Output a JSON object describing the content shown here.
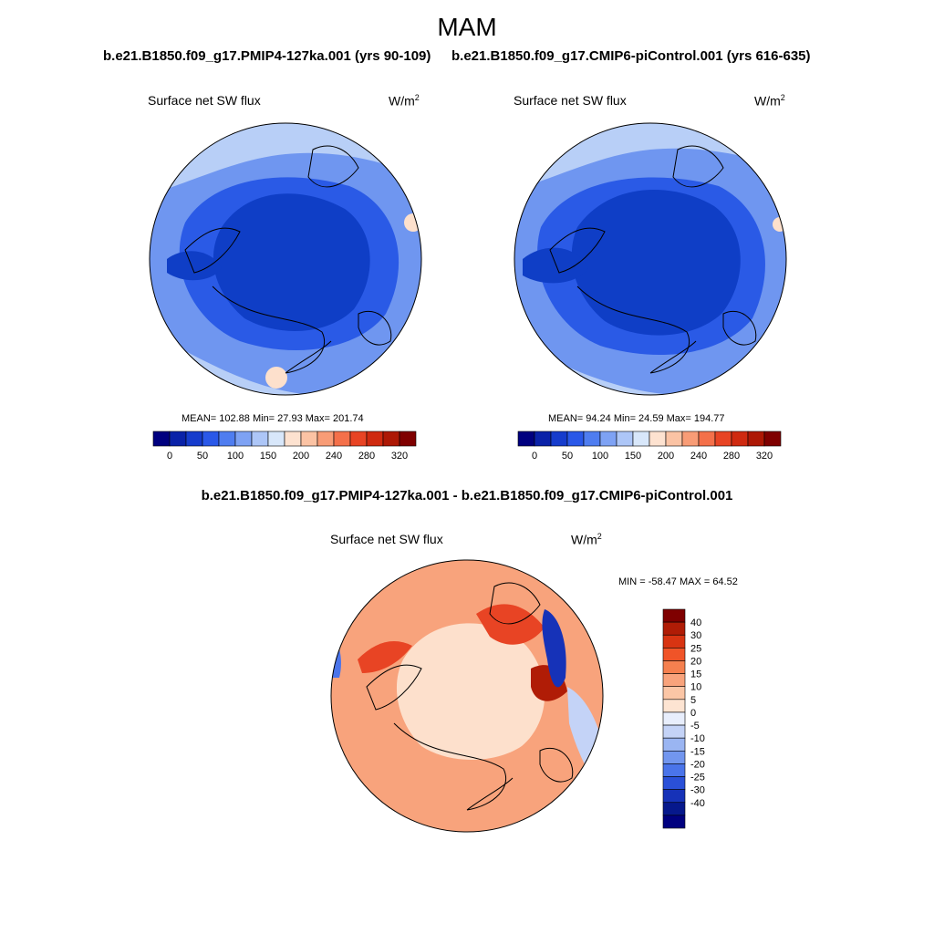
{
  "figure": {
    "season": "MAM",
    "panel_left": {
      "title": "b.e21.B1850.f09_g17.PMIP4-127ka.001 (yrs 90-109)",
      "variable": "Surface net SW flux",
      "units": "W/m",
      "units_sup": "2",
      "stats": "MEAN= 102.88  Min=  27.93  Max= 201.74"
    },
    "panel_right": {
      "title": "b.e21.B1850.f09_g17.CMIP6-piControl.001 (yrs 616-635)",
      "variable": "Surface net SW flux",
      "units": "W/m",
      "units_sup": "2",
      "stats": "MEAN=  94.24  Min=  24.59  Max= 194.77"
    },
    "panel_diff": {
      "title": "b.e21.B1850.f09_g17.PMIP4-127ka.001 - b.e21.B1850.f09_g17.CMIP6-piControl.001",
      "variable": "Surface net SW flux",
      "units": "W/m",
      "units_sup": "2",
      "stats": "MIN = -58.47 MAX =  64.52"
    }
  },
  "colorbar_abs": {
    "colors": [
      "#00007f",
      "#0a22a8",
      "#163ccc",
      "#2a58e8",
      "#4f7df0",
      "#7ea2f4",
      "#adc6f7",
      "#d8e7fa",
      "#fde2d0",
      "#fbc3a4",
      "#f89c76",
      "#f4704a",
      "#e84424",
      "#cf2a10",
      "#ad1805",
      "#7f0000"
    ],
    "tick_labels": [
      "0",
      "50",
      "100",
      "150",
      "200",
      "240",
      "280",
      "320"
    ]
  },
  "colorbar_diff": {
    "colors": [
      "#7f0000",
      "#b01c06",
      "#d83412",
      "#f05428",
      "#f5804f",
      "#f8a37c",
      "#fbc6a6",
      "#fde4d2",
      "#e8eefc",
      "#c4d3f7",
      "#9ab5f2",
      "#7296ef",
      "#4a74ea",
      "#2a50d8",
      "#1632b8",
      "#06188c",
      "#00007f"
    ],
    "tick_labels": [
      "40",
      "30",
      "25",
      "20",
      "15",
      "10",
      "5",
      "0",
      "-5",
      "-10",
      "-15",
      "-20",
      "-25",
      "-30",
      "-40"
    ]
  },
  "map_colors": {
    "deep_blue": "#0f3ec6",
    "mid_blue": "#2a5ae6",
    "light_blue": "#6f96f0",
    "pale_blue": "#b8cff7",
    "salmon": "#f8a37c",
    "pale_salmon": "#fde0cc",
    "red": "#e84424",
    "dark_red": "#b01c06",
    "diff_blue": "#1632b8"
  }
}
